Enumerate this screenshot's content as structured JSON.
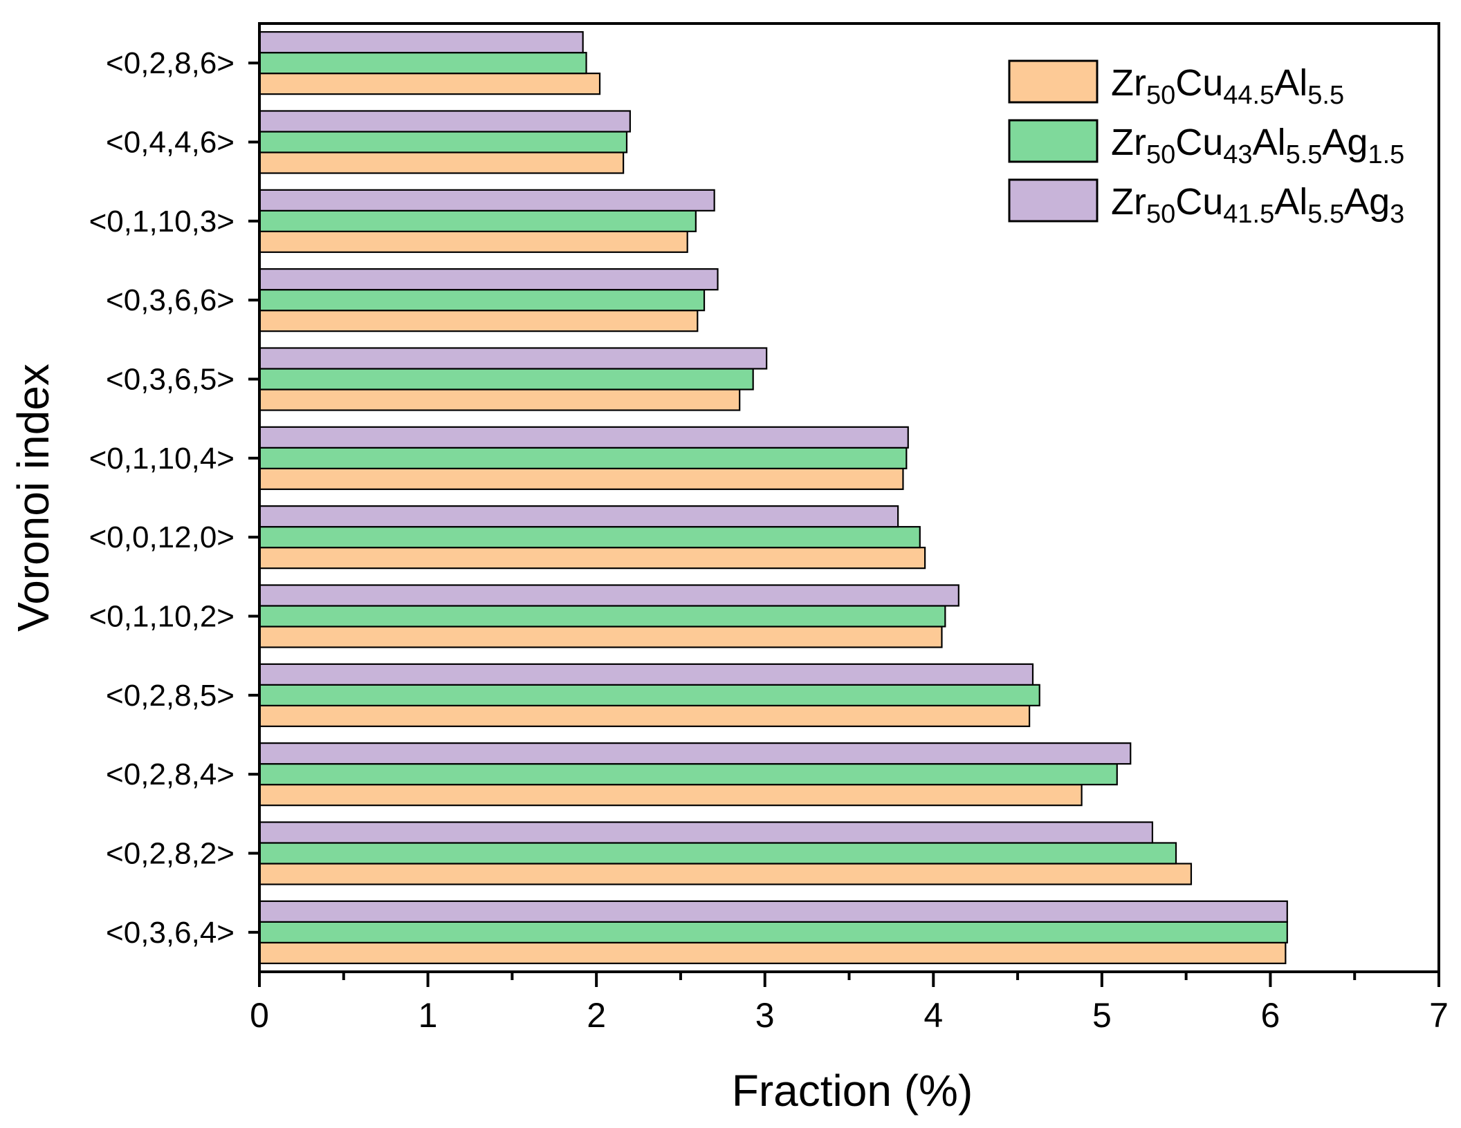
{
  "chart_data": {
    "type": "bar",
    "orientation": "horizontal",
    "xlabel": "Fraction (%)",
    "ylabel": "Voronoi index",
    "xlim": [
      0,
      7
    ],
    "xticks": [
      "0",
      "1",
      "2",
      "3",
      "4",
      "5",
      "6",
      "7"
    ],
    "grid": false,
    "legend_position": "top-right",
    "categories": [
      "<0,2,8,6>",
      "<0,4,4,6>",
      "<0,1,10,3>",
      "<0,3,6,6>",
      "<0,3,6,5>",
      "<0,1,10,4>",
      "<0,0,12,0>",
      "<0,1,10,2>",
      "<0,2,8,5>",
      "<0,2,8,4>",
      "<0,2,8,2>",
      "<0,3,6,4>"
    ],
    "series": [
      {
        "name": "Zr50Cu44.5Al5.5",
        "legend_parts": [
          [
            "Zr",
            ""
          ],
          [
            "50",
            "sub"
          ],
          [
            "Cu",
            ""
          ],
          [
            "44.5",
            "sub"
          ],
          [
            "Al",
            ""
          ],
          [
            "5.5",
            "sub"
          ]
        ],
        "color": "#fdca96",
        "values": [
          2.02,
          2.16,
          2.54,
          2.6,
          2.85,
          3.82,
          3.95,
          4.05,
          4.57,
          4.88,
          5.53,
          6.09
        ]
      },
      {
        "name": "Zr50Cu43Al5.5Ag1.5",
        "legend_parts": [
          [
            "Zr",
            ""
          ],
          [
            "50",
            "sub"
          ],
          [
            "Cu",
            ""
          ],
          [
            "43",
            "sub"
          ],
          [
            "Al",
            ""
          ],
          [
            "5.5",
            "sub"
          ],
          [
            "Ag",
            ""
          ],
          [
            "1.5",
            "sub"
          ]
        ],
        "color": "#7fd99b",
        "values": [
          1.94,
          2.18,
          2.59,
          2.64,
          2.93,
          3.84,
          3.92,
          4.07,
          4.63,
          5.09,
          5.44,
          6.1
        ]
      },
      {
        "name": "Zr50Cu41.5Al5.5Ag3",
        "legend_parts": [
          [
            "Zr",
            ""
          ],
          [
            "50",
            "sub"
          ],
          [
            "Cu",
            ""
          ],
          [
            "41.5",
            "sub"
          ],
          [
            "Al",
            ""
          ],
          [
            "5.5",
            "sub"
          ],
          [
            "Ag",
            ""
          ],
          [
            "3",
            "sub"
          ]
        ],
        "color": "#c8b4d9",
        "values": [
          1.92,
          2.2,
          2.7,
          2.72,
          3.01,
          3.85,
          3.79,
          4.15,
          4.59,
          5.17,
          5.3,
          6.1
        ]
      }
    ]
  }
}
